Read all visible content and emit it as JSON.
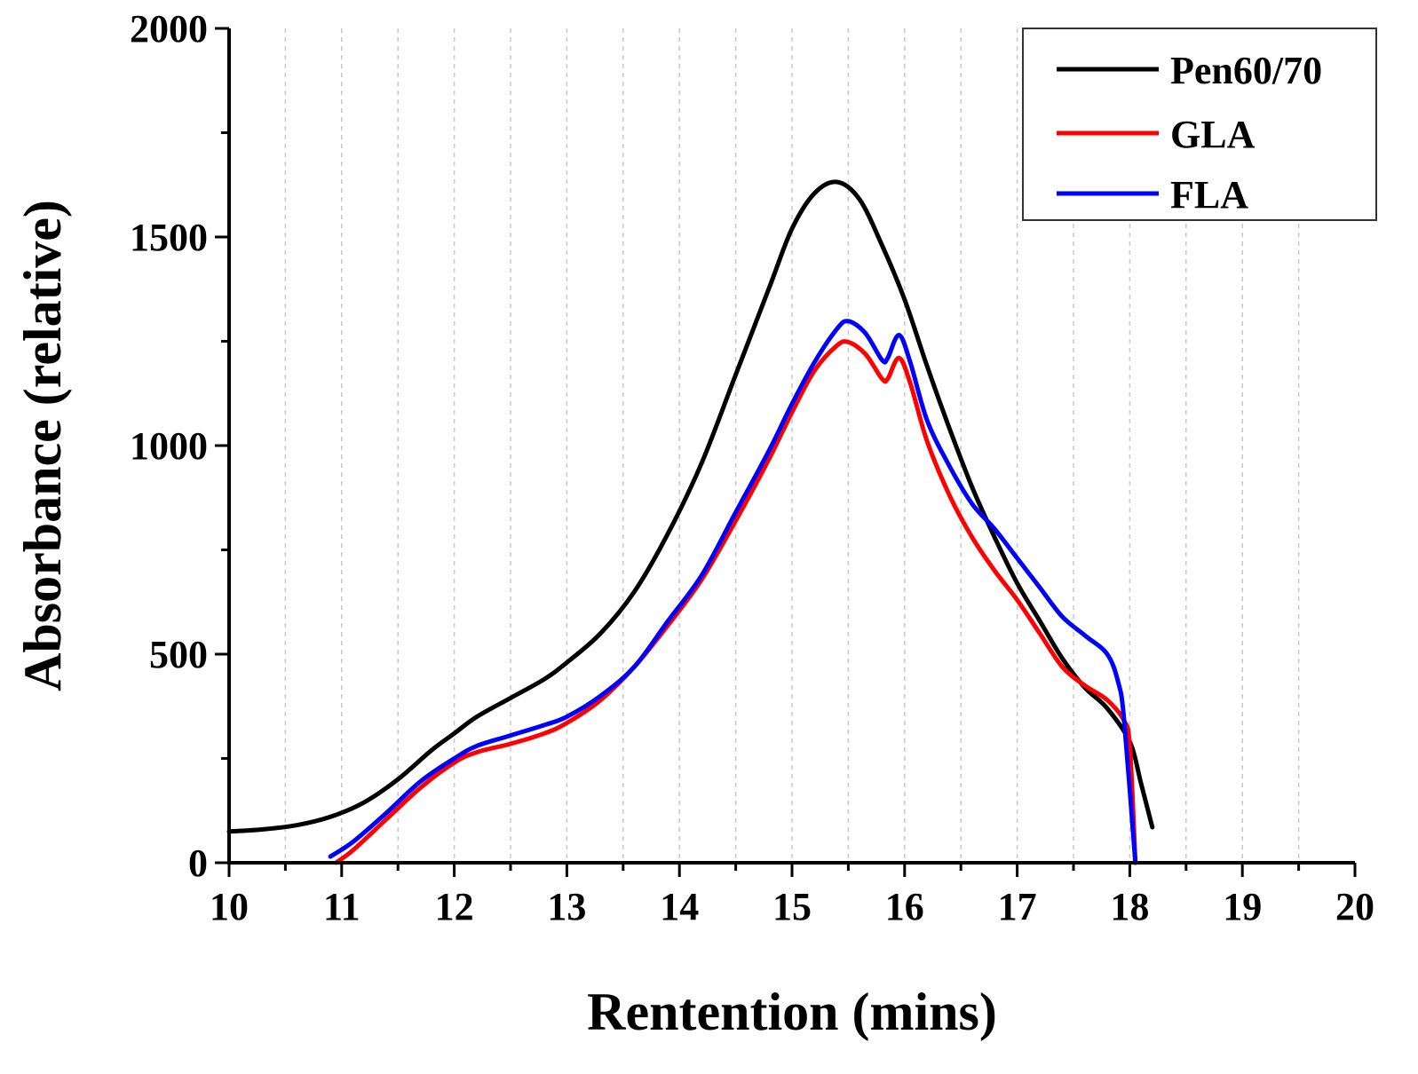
{
  "chart_data": {
    "type": "line",
    "title": "",
    "xlabel": "Rentention (mins)",
    "ylabel": "Absorbance (relative)",
    "xlim": [
      10,
      20
    ],
    "ylim": [
      0,
      2000
    ],
    "x_ticks": [
      "10",
      "11",
      "12",
      "13",
      "14",
      "15",
      "16",
      "17",
      "18",
      "19",
      "20"
    ],
    "y_ticks": [
      "0",
      "500",
      "1000",
      "1500",
      "2000"
    ],
    "grid": "vertical dashed at every 0.5 min",
    "legend_position": "top-right",
    "series": [
      {
        "name": "Pen60/70",
        "color": "#000000",
        "points": [
          [
            10.0,
            75
          ],
          [
            10.3,
            80
          ],
          [
            10.6,
            90
          ],
          [
            10.9,
            110
          ],
          [
            11.2,
            145
          ],
          [
            11.5,
            200
          ],
          [
            11.8,
            270
          ],
          [
            12.0,
            310
          ],
          [
            12.2,
            350
          ],
          [
            12.5,
            395
          ],
          [
            12.8,
            440
          ],
          [
            13.0,
            480
          ],
          [
            13.3,
            550
          ],
          [
            13.6,
            650
          ],
          [
            13.9,
            790
          ],
          [
            14.2,
            960
          ],
          [
            14.5,
            1170
          ],
          [
            14.8,
            1380
          ],
          [
            15.0,
            1520
          ],
          [
            15.2,
            1605
          ],
          [
            15.4,
            1632
          ],
          [
            15.6,
            1590
          ],
          [
            15.8,
            1480
          ],
          [
            16.0,
            1350
          ],
          [
            16.2,
            1190
          ],
          [
            16.4,
            1040
          ],
          [
            16.6,
            900
          ],
          [
            16.8,
            780
          ],
          [
            17.0,
            670
          ],
          [
            17.2,
            580
          ],
          [
            17.4,
            490
          ],
          [
            17.6,
            420
          ],
          [
            17.8,
            370
          ],
          [
            18.0,
            290
          ],
          [
            18.1,
            190
          ],
          [
            18.2,
            85
          ]
        ]
      },
      {
        "name": "GLA",
        "color": "#ff0000",
        "points": [
          [
            10.95,
            0
          ],
          [
            11.1,
            30
          ],
          [
            11.4,
            105
          ],
          [
            11.7,
            180
          ],
          [
            12.0,
            240
          ],
          [
            12.2,
            265
          ],
          [
            12.5,
            285
          ],
          [
            12.8,
            310
          ],
          [
            13.0,
            335
          ],
          [
            13.3,
            390
          ],
          [
            13.6,
            470
          ],
          [
            13.9,
            570
          ],
          [
            14.2,
            680
          ],
          [
            14.5,
            820
          ],
          [
            14.8,
            970
          ],
          [
            15.0,
            1080
          ],
          [
            15.2,
            1180
          ],
          [
            15.4,
            1240
          ],
          [
            15.5,
            1248
          ],
          [
            15.65,
            1220
          ],
          [
            15.8,
            1160
          ],
          [
            15.85,
            1160
          ],
          [
            15.95,
            1210
          ],
          [
            16.05,
            1150
          ],
          [
            16.2,
            1010
          ],
          [
            16.4,
            880
          ],
          [
            16.6,
            780
          ],
          [
            16.8,
            700
          ],
          [
            17.0,
            630
          ],
          [
            17.2,
            550
          ],
          [
            17.4,
            470
          ],
          [
            17.6,
            425
          ],
          [
            17.8,
            390
          ],
          [
            17.95,
            340
          ],
          [
            18.0,
            280
          ],
          [
            18.05,
            0
          ]
        ]
      },
      {
        "name": "FLA",
        "color": "#0000ff",
        "points": [
          [
            10.9,
            15
          ],
          [
            11.1,
            50
          ],
          [
            11.4,
            120
          ],
          [
            11.7,
            195
          ],
          [
            12.0,
            250
          ],
          [
            12.2,
            280
          ],
          [
            12.5,
            305
          ],
          [
            12.8,
            330
          ],
          [
            13.0,
            350
          ],
          [
            13.3,
            400
          ],
          [
            13.6,
            470
          ],
          [
            13.9,
            580
          ],
          [
            14.2,
            690
          ],
          [
            14.5,
            840
          ],
          [
            14.8,
            990
          ],
          [
            15.0,
            1100
          ],
          [
            15.2,
            1200
          ],
          [
            15.4,
            1280
          ],
          [
            15.5,
            1298
          ],
          [
            15.65,
            1270
          ],
          [
            15.8,
            1205
          ],
          [
            15.85,
            1210
          ],
          [
            15.95,
            1265
          ],
          [
            16.05,
            1200
          ],
          [
            16.2,
            1060
          ],
          [
            16.4,
            950
          ],
          [
            16.6,
            860
          ],
          [
            16.8,
            800
          ],
          [
            17.0,
            730
          ],
          [
            17.2,
            660
          ],
          [
            17.4,
            590
          ],
          [
            17.6,
            545
          ],
          [
            17.8,
            500
          ],
          [
            17.9,
            430
          ],
          [
            17.95,
            340
          ],
          [
            18.05,
            0
          ]
        ]
      }
    ]
  }
}
